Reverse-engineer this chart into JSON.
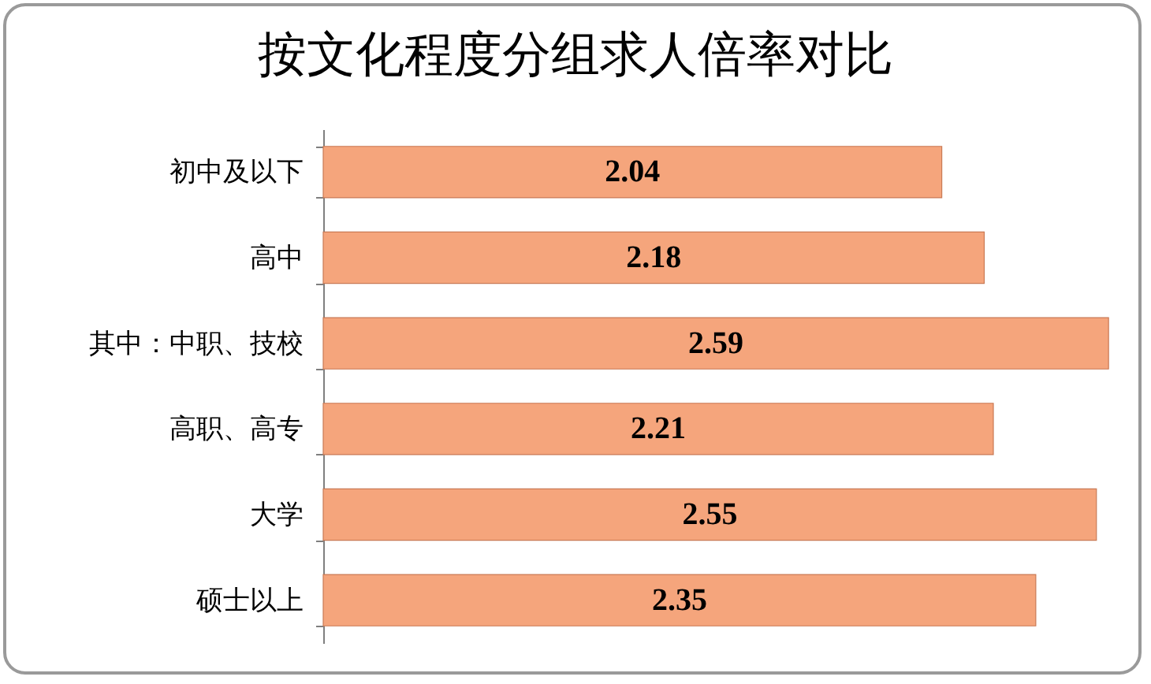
{
  "chart_data": {
    "type": "bar",
    "orientation": "horizontal",
    "title": "按文化程度分组求人倍率对比",
    "categories": [
      "初中及以下",
      "高中",
      "其中：中职、技校",
      "高职、高专",
      "大学",
      "硕士以上"
    ],
    "values": [
      2.04,
      2.18,
      2.59,
      2.21,
      2.55,
      2.35
    ],
    "color": "#f5a57c",
    "data_labels": true
  }
}
